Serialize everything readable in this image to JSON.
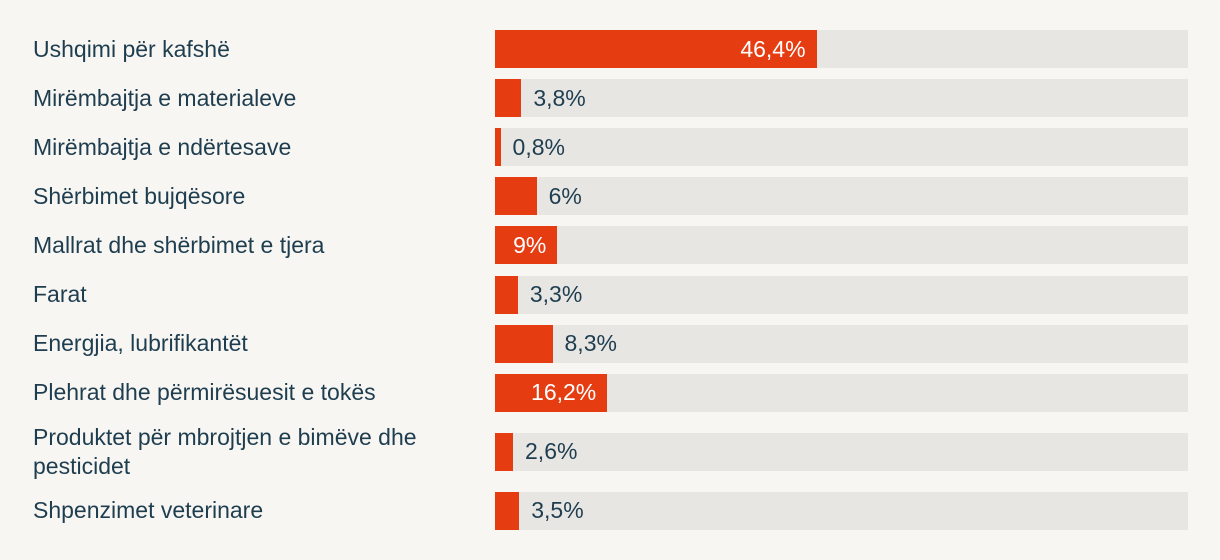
{
  "chart_data": {
    "type": "bar",
    "orientation": "horizontal",
    "title": "",
    "xlabel": "",
    "ylabel": "",
    "xlim": [
      0,
      100
    ],
    "grid": false,
    "legend": null,
    "decimal_separator": ",",
    "colors": {
      "background": "#f8f6f2",
      "track": "#e8e6e3",
      "bar": "#e63c12",
      "label_text": "#1e3e50",
      "value_text_inside": "#ffffff"
    },
    "categories": [
      "Ushqimi për kafshë",
      "Mirëmbajtja e materialeve",
      "Mirëmbajtja e ndërtesave",
      "Shërbimet bujqësore",
      "Mallrat dhe shërbimet e tjera",
      "Farat",
      "Energjia, lubrifikantët",
      "Plehrat dhe përmirësuesit e tokës",
      "Produktet për mbrojtjen e bimëve dhe pesticidet",
      "Shpenzimet veterinare"
    ],
    "values": [
      46.4,
      3.8,
      0.8,
      6,
      9,
      3.3,
      8.3,
      16.2,
      2.6,
      3.5
    ],
    "rows": [
      {
        "category": "Ushqimi për kafshë",
        "value": 46.4,
        "value_label": "46,4%",
        "value_label_position": "inside"
      },
      {
        "category": "Mirëmbajtja e materialeve",
        "value": 3.8,
        "value_label": "3,8%",
        "value_label_position": "outside"
      },
      {
        "category": "Mirëmbajtja e ndërtesave",
        "value": 0.8,
        "value_label": "0,8%",
        "value_label_position": "outside"
      },
      {
        "category": "Shërbimet bujqësore",
        "value": 6,
        "value_label": "6%",
        "value_label_position": "outside"
      },
      {
        "category": "Mallrat dhe shërbimet e tjera",
        "value": 9,
        "value_label": "9%",
        "value_label_position": "inside"
      },
      {
        "category": "Farat",
        "value": 3.3,
        "value_label": "3,3%",
        "value_label_position": "outside"
      },
      {
        "category": "Energjia, lubrifikantët",
        "value": 8.3,
        "value_label": "8,3%",
        "value_label_position": "outside"
      },
      {
        "category": "Plehrat dhe përmirësuesit e tokës",
        "value": 16.2,
        "value_label": "16,2%",
        "value_label_position": "inside"
      },
      {
        "category": "Produktet për mbrojtjen e bimëve dhe pesticidet",
        "value": 2.6,
        "value_label": "2,6%",
        "value_label_position": "outside"
      },
      {
        "category": "Shpenzimet veterinare",
        "value": 3.5,
        "value_label": "3,5%",
        "value_label_position": "outside"
      }
    ]
  }
}
